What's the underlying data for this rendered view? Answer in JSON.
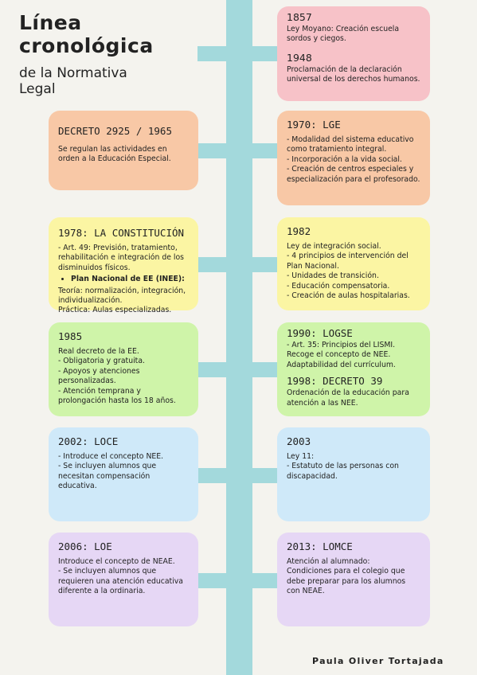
{
  "header": {
    "title_line1": "Línea",
    "title_line2": "cronológica",
    "subtitle_line1": "de la Normativa",
    "subtitle_line2": "Legal"
  },
  "cards": {
    "c1857": {
      "year": "1857",
      "text": "Ley Moyano: Creación escuela sordos y ciegos."
    },
    "c1948": {
      "year": "1948",
      "text": "Proclamación de la declaración universal de los derechos humanos."
    },
    "decreto1965": {
      "title": "DECRETO 2925 / 1965",
      "text": "Se regulan las actividades en orden a la Educación Especial."
    },
    "lge1970": {
      "title": "1970: LGE",
      "lines": [
        "- Modalidad del sistema educativo como tratamiento integral.",
        "- Incorporación a la vida social.",
        "- Creación de centros especiales y especialización para el profesorado."
      ]
    },
    "constitucion1978": {
      "title": "1978: LA CONSTITUCIÓN",
      "line1": "- Art. 49: Previsión, tratamiento, rehabilitación e integración de los disminuidos físicos.",
      "bullet": "Plan Nacional de EE (INEE):",
      "line2": "Teoría: normalización, integración, individualización.",
      "line3": "Práctica: Aulas especializadas."
    },
    "c1982": {
      "title": "1982",
      "lines": [
        "Ley de integración social.",
        "- 4 principios de intervención del Plan Nacional.",
        "- Unidades de transición.",
        "- Educación compensatoria.",
        "- Creación de aulas hospitalarias."
      ]
    },
    "c1985": {
      "title": "1985",
      "lines": [
        "Real decreto de la EE.",
        "- Obligatoria y gratuita.",
        "- Apoyos y atenciones personalizadas.",
        "- Atención temprana y prolongación hasta los 18 años."
      ]
    },
    "logse1990": {
      "title": "1990: LOGSE",
      "lines": [
        "- Art. 35: Principios del LISMI.",
        "Recoge el concepto de NEE.",
        "Adaptabilidad del currículum."
      ]
    },
    "decreto1998": {
      "title": "1998: DECRETO 39",
      "text": "Ordenación de la educación para atención a las NEE."
    },
    "loce2002": {
      "title": "2002: LOCE",
      "lines": [
        "- Introduce el concepto NEE.",
        "- Se incluyen alumnos que necesitan compensación educativa."
      ]
    },
    "c2003": {
      "title": "2003",
      "lines": [
        "Ley 11:",
        "- Estatuto de las personas con discapacidad."
      ]
    },
    "loe2006": {
      "title": "2006: LOE",
      "lines": [
        "Introduce el concepto de NEAE.",
        "- Se incluyen alumnos que requieren una atención educativa diferente a la ordinaria."
      ]
    },
    "lomce2013": {
      "title": "2013: LOMCE",
      "lines": [
        "Atención al alumnado:",
        "Condiciones para el colegio que debe preparar para los alumnos con NEAE."
      ]
    }
  },
  "author": "Paula Oliver Tortajada",
  "colors": {
    "spine": "#a3d9dc",
    "pink": "#f7c2c8",
    "orange": "#f8c8a6",
    "yellow": "#fbf5a3",
    "green": "#cff4a9",
    "blue": "#cfe9f9",
    "purple": "#e6d7f5"
  }
}
